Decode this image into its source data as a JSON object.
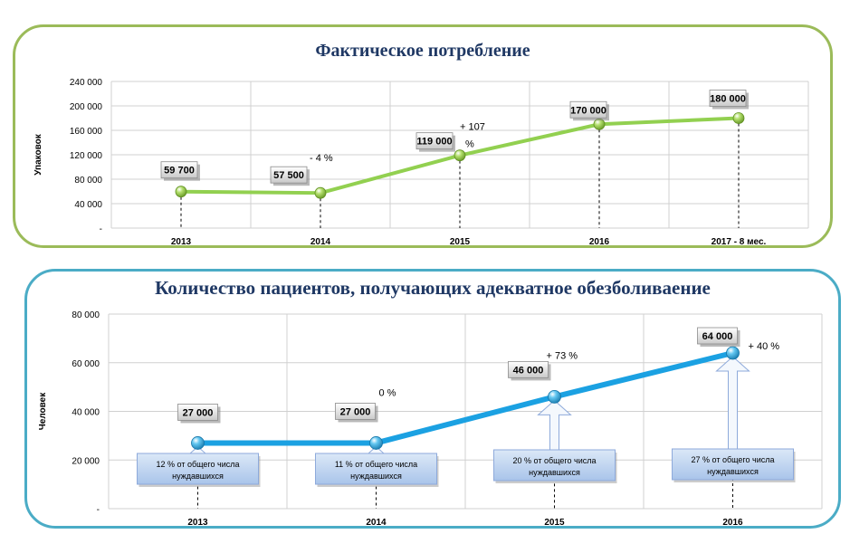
{
  "colors": {
    "panel1_border": "#9bbb59",
    "panel2_border": "#4bacc6",
    "line1": "#92d050",
    "line2": "#1ba1e2",
    "title": "#1f3864",
    "callout_fill": "#c6d9f1",
    "callout_border": "#8eaadb"
  },
  "chart_data": [
    {
      "type": "line",
      "title": "Фактическое потребление",
      "xlabel": "",
      "ylabel": "Упаковок",
      "categories": [
        "2013",
        "2014",
        "2015",
        "2016",
        "2017 - 8 мес."
      ],
      "series": [
        {
          "values": [
            59700,
            57500,
            119000,
            170000,
            180000
          ]
        }
      ],
      "data_labels": [
        "59 700",
        "57 500",
        "119 000",
        "170 000",
        "180 000"
      ],
      "annotations": [
        "",
        "- 4 %",
        "+ 107 %",
        "",
        ""
      ],
      "ylim": [
        0,
        240000
      ],
      "yticks": [
        0,
        40000,
        80000,
        120000,
        160000,
        200000,
        240000
      ],
      "ytick_labels": [
        "-",
        "40 000",
        "80 000",
        "120 000",
        "160 000",
        "200 000",
        "240 000"
      ],
      "grid": true,
      "legend": "none"
    },
    {
      "type": "line",
      "title": "Количество пациентов, получающих адекватное обезболиваение",
      "xlabel": "",
      "ylabel": "Человек",
      "categories": [
        "2013",
        "2014",
        "2015",
        "2016"
      ],
      "series": [
        {
          "values": [
            27000,
            27000,
            46000,
            64000
          ]
        }
      ],
      "data_labels": [
        "27  000",
        "27 000",
        "46 000",
        "64 000"
      ],
      "annotations": [
        "",
        "0 %",
        "+ 73 %",
        "+ 40 %"
      ],
      "callouts": [
        "12 % от общего числа нуждавшихся",
        "11 % от общего числа нуждавшихся",
        "20 % от общего числа нуждавшихся",
        "27 % от общего числа нуждавшихся"
      ],
      "ylim": [
        0,
        80000
      ],
      "yticks": [
        0,
        20000,
        40000,
        60000,
        80000
      ],
      "ytick_labels": [
        "-",
        "20 000",
        "40 000",
        "60 000",
        "80 000"
      ],
      "grid": true,
      "legend": "none"
    }
  ]
}
